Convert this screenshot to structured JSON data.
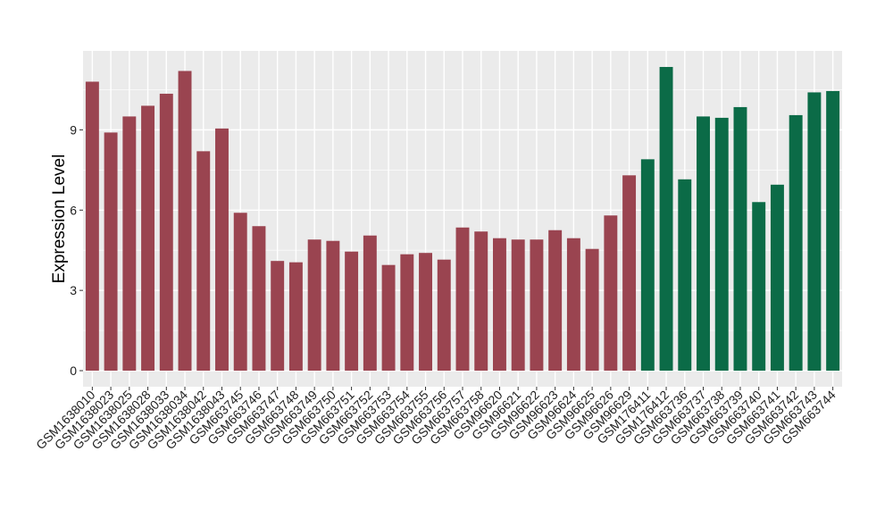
{
  "chart_data": {
    "type": "bar",
    "title": "",
    "xlabel": "",
    "ylabel": "Expression Level",
    "ylim": [
      -0.6,
      11.95
    ],
    "yticks": [
      0,
      3,
      6,
      9
    ],
    "grid": true,
    "legend": "none",
    "colors": {
      "group_a": "#9a4450",
      "group_b": "#0b6b47",
      "panel_bg": "#ebebeb",
      "grid": "#ffffff"
    },
    "categories": [
      "GSM1638010",
      "GSM1638023",
      "GSM1638025",
      "GSM1638028",
      "GSM1638033",
      "GSM1638034",
      "GSM1638042",
      "GSM1638043",
      "GSM663745",
      "GSM663746",
      "GSM663747",
      "GSM663748",
      "GSM663749",
      "GSM663750",
      "GSM663751",
      "GSM663752",
      "GSM663753",
      "GSM663754",
      "GSM663755",
      "GSM663756",
      "GSM663757",
      "GSM663758",
      "GSM96620",
      "GSM96621",
      "GSM96622",
      "GSM96623",
      "GSM96624",
      "GSM96625",
      "GSM96626",
      "GSM96629",
      "GSM176411",
      "GSM176412",
      "GSM663736",
      "GSM663737",
      "GSM663738",
      "GSM663739",
      "GSM663740",
      "GSM663741",
      "GSM663742",
      "GSM663743",
      "GSM663744"
    ],
    "values": [
      10.8,
      8.9,
      9.5,
      9.9,
      10.35,
      11.2,
      8.2,
      9.05,
      5.9,
      5.4,
      4.1,
      4.05,
      4.9,
      4.85,
      4.45,
      5.05,
      3.95,
      4.35,
      4.4,
      4.15,
      5.35,
      5.2,
      4.95,
      4.9,
      4.9,
      5.25,
      4.95,
      4.55,
      5.8,
      7.3,
      7.9,
      11.35,
      7.15,
      9.5,
      9.45,
      9.85,
      6.3,
      6.95,
      9.55,
      10.4,
      10.45
    ],
    "groups": [
      "a",
      "a",
      "a",
      "a",
      "a",
      "a",
      "a",
      "a",
      "a",
      "a",
      "a",
      "a",
      "a",
      "a",
      "a",
      "a",
      "a",
      "a",
      "a",
      "a",
      "a",
      "a",
      "a",
      "a",
      "a",
      "a",
      "a",
      "a",
      "a",
      "a",
      "b",
      "b",
      "b",
      "b",
      "b",
      "b",
      "b",
      "b",
      "b",
      "b",
      "b"
    ]
  }
}
